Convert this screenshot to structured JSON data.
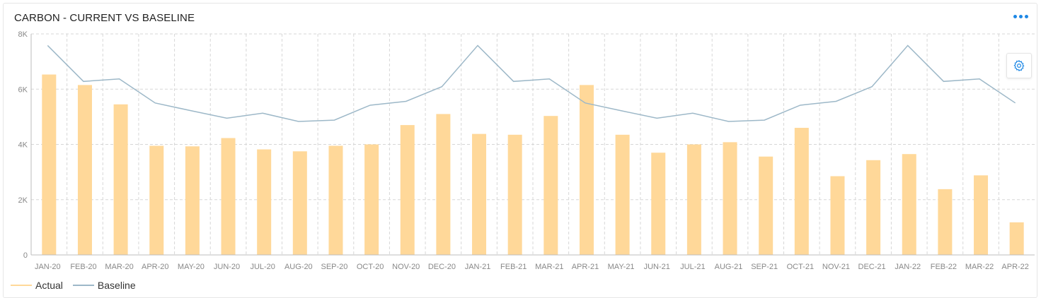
{
  "title": "CARBON - CURRENT VS BASELINE",
  "menu_icon": "more-dots-icon",
  "settings_icon": "gear-icon",
  "colors": {
    "actual": "#ffd899",
    "baseline": "#9db8c8",
    "accent": "#1e88e5",
    "grid": "#d7d7d7",
    "tick": "#888888"
  },
  "legend": {
    "actual_label": "Actual",
    "baseline_label": "Baseline"
  },
  "chart_data": {
    "type": "bar",
    "categories": [
      "JAN-20",
      "FEB-20",
      "MAR-20",
      "APR-20",
      "MAY-20",
      "JUN-20",
      "JUL-20",
      "AUG-20",
      "SEP-20",
      "OCT-20",
      "NOV-20",
      "DEC-20",
      "JAN-21",
      "FEB-21",
      "MAR-21",
      "APR-21",
      "MAY-21",
      "JUN-21",
      "JUL-21",
      "AUG-21",
      "SEP-21",
      "OCT-21",
      "NOV-21",
      "DEC-21",
      "JAN-22",
      "FEB-22",
      "MAR-22",
      "APR-22"
    ],
    "y_ticks": [
      "0",
      "2K",
      "4K",
      "6K",
      "8K"
    ],
    "ylim": [
      0,
      8000
    ],
    "grid": true,
    "legend_position": "bottom-left",
    "series": [
      {
        "name": "Actual",
        "type": "bar",
        "values": [
          6530,
          6150,
          5450,
          3950,
          3930,
          4230,
          3820,
          3750,
          3950,
          4000,
          4700,
          5100,
          4380,
          4350,
          5030,
          6150,
          4350,
          3700,
          4000,
          4080,
          3560,
          4600,
          2850,
          3430,
          3650,
          2380,
          2880,
          1180
        ]
      },
      {
        "name": "Baseline",
        "type": "line",
        "values": [
          7580,
          6280,
          6370,
          5500,
          5220,
          4950,
          5130,
          4830,
          4880,
          5420,
          5560,
          6090,
          7580,
          6280,
          6370,
          5500,
          5220,
          4950,
          5130,
          4830,
          4880,
          5420,
          5560,
          6090,
          7580,
          6280,
          6370,
          5500
        ]
      }
    ]
  }
}
